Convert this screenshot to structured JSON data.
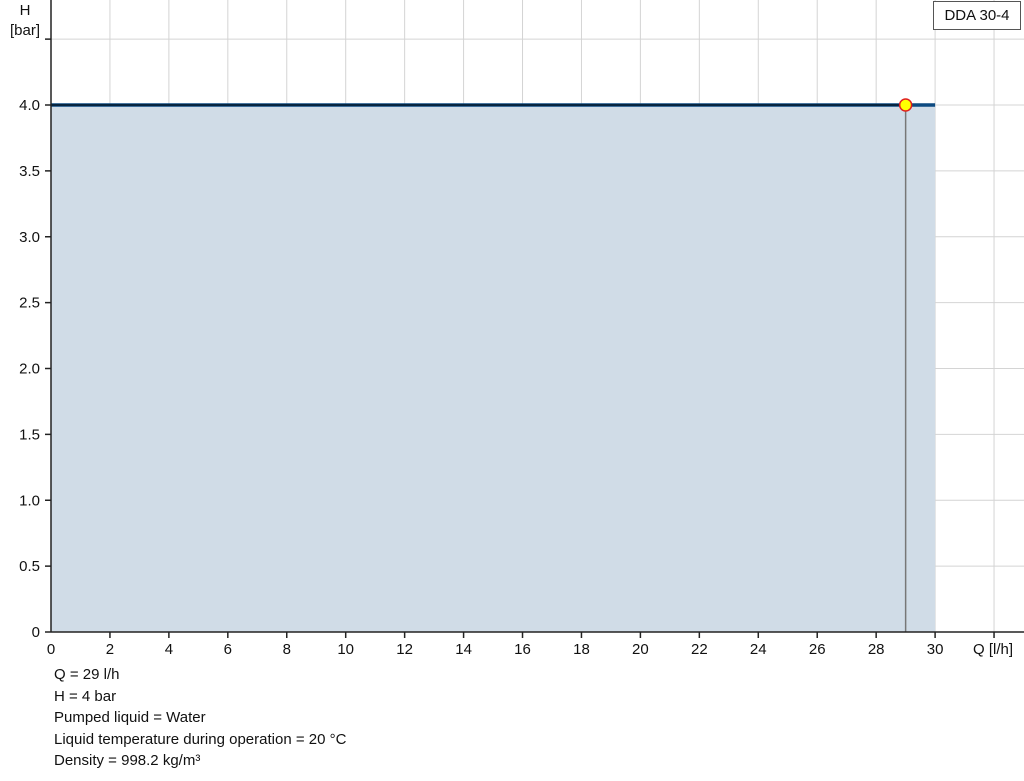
{
  "chart_data": {
    "type": "area",
    "title": "",
    "xlabel": "Q [l/h]",
    "ylabel": "H",
    "ylabel_unit": "[bar]",
    "xlim": [
      0,
      32
    ],
    "ylim": [
      0,
      4.8
    ],
    "x_ticks": [
      0,
      2,
      4,
      6,
      8,
      10,
      12,
      14,
      16,
      18,
      20,
      22,
      24,
      26,
      28,
      30
    ],
    "y_ticks": [
      "0",
      "0.5",
      "1.0",
      "1.5",
      "2.0",
      "2.5",
      "3.0",
      "3.5",
      "4.0"
    ],
    "grid": true,
    "legend": "top-right",
    "series": [
      {
        "name": "DDA 30-4",
        "x": [
          0,
          30
        ],
        "y": [
          4.0,
          4.0
        ],
        "color": "#0d4a80",
        "fill": "#d0dce7"
      }
    ],
    "operating_point": {
      "x": 29,
      "y": 4.0,
      "color": "#ffff00",
      "stroke": "#e02020"
    }
  },
  "info": {
    "q": "Q = 29 l/h",
    "h": "H = 4 bar",
    "liquid": "Pumped liquid = Water",
    "temp": "Liquid temperature during operation = 20 °C",
    "density": "Density = 998.2 kg/m³"
  }
}
